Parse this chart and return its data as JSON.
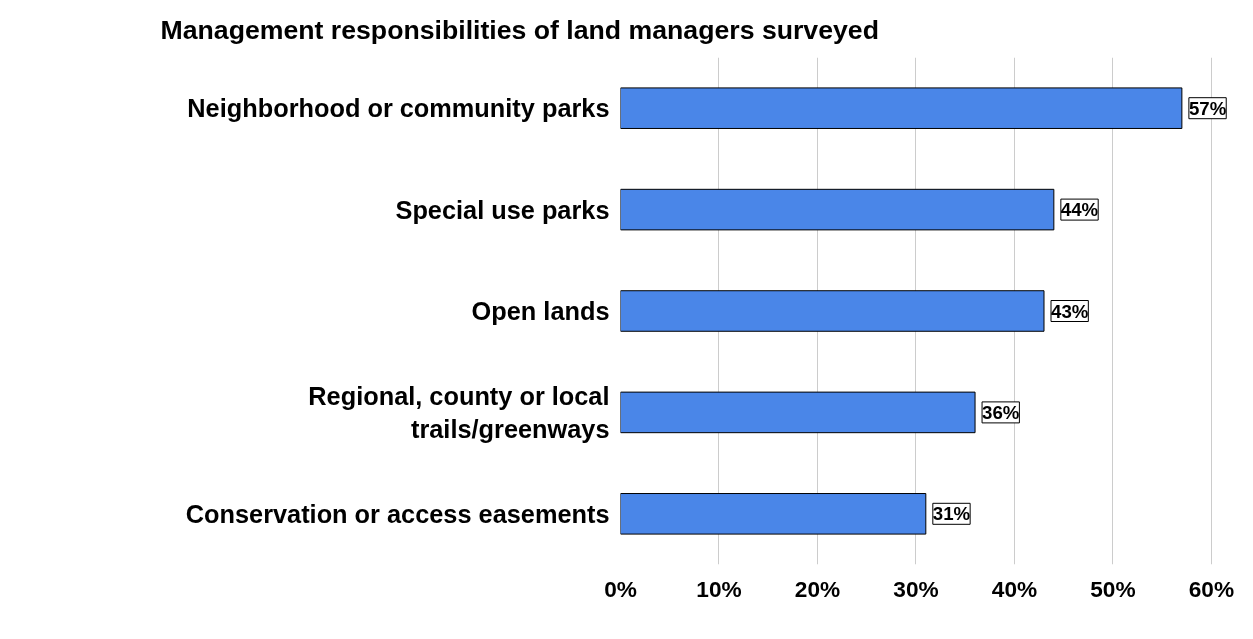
{
  "chart_data": {
    "type": "bar",
    "orientation": "horizontal",
    "title": "Management responsibilities of land managers surveyed",
    "categories": [
      "Neighborhood or community parks",
      "Special use parks",
      "Open lands",
      "Regional, county or local\ntrails/greenways",
      "Conservation or access easements"
    ],
    "values": [
      57,
      44,
      43,
      36,
      31
    ],
    "value_labels": [
      "57%",
      "44%",
      "43%",
      "36%",
      "31%"
    ],
    "color": "#4a86e8",
    "xlim": [
      0,
      60
    ],
    "xticks": [
      {
        "value": 0,
        "label": "0%"
      },
      {
        "value": 10,
        "label": "10%"
      },
      {
        "value": 20,
        "label": "20%"
      },
      {
        "value": 30,
        "label": "30%"
      },
      {
        "value": 40,
        "label": "40%"
      },
      {
        "value": 50,
        "label": "50%"
      },
      {
        "value": 60,
        "label": "60%"
      }
    ],
    "grid": "x",
    "legend": false
  }
}
